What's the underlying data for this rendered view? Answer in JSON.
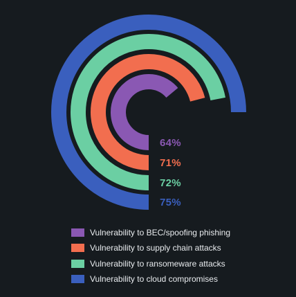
{
  "chart_data": {
    "type": "radial-bar",
    "title": "",
    "series": [
      {
        "name": "Vulnerability to BEC/spoofing phishing",
        "value": 64,
        "label": "64%",
        "color": "#8a58b3"
      },
      {
        "name": "Vulnerability to supply chain attacks",
        "value": 71,
        "label": "71%",
        "color": "#f26e4f"
      },
      {
        "name": "Vulnerability to ransomeware attacks",
        "value": 72,
        "label": "72%",
        "color": "#6bcfa3"
      },
      {
        "name": "Vulnerability to cloud compromises",
        "value": 75,
        "label": "75%",
        "color": "#3a5fbe"
      }
    ],
    "max": 100,
    "legend_position": "bottom"
  },
  "background": "#161b1f"
}
